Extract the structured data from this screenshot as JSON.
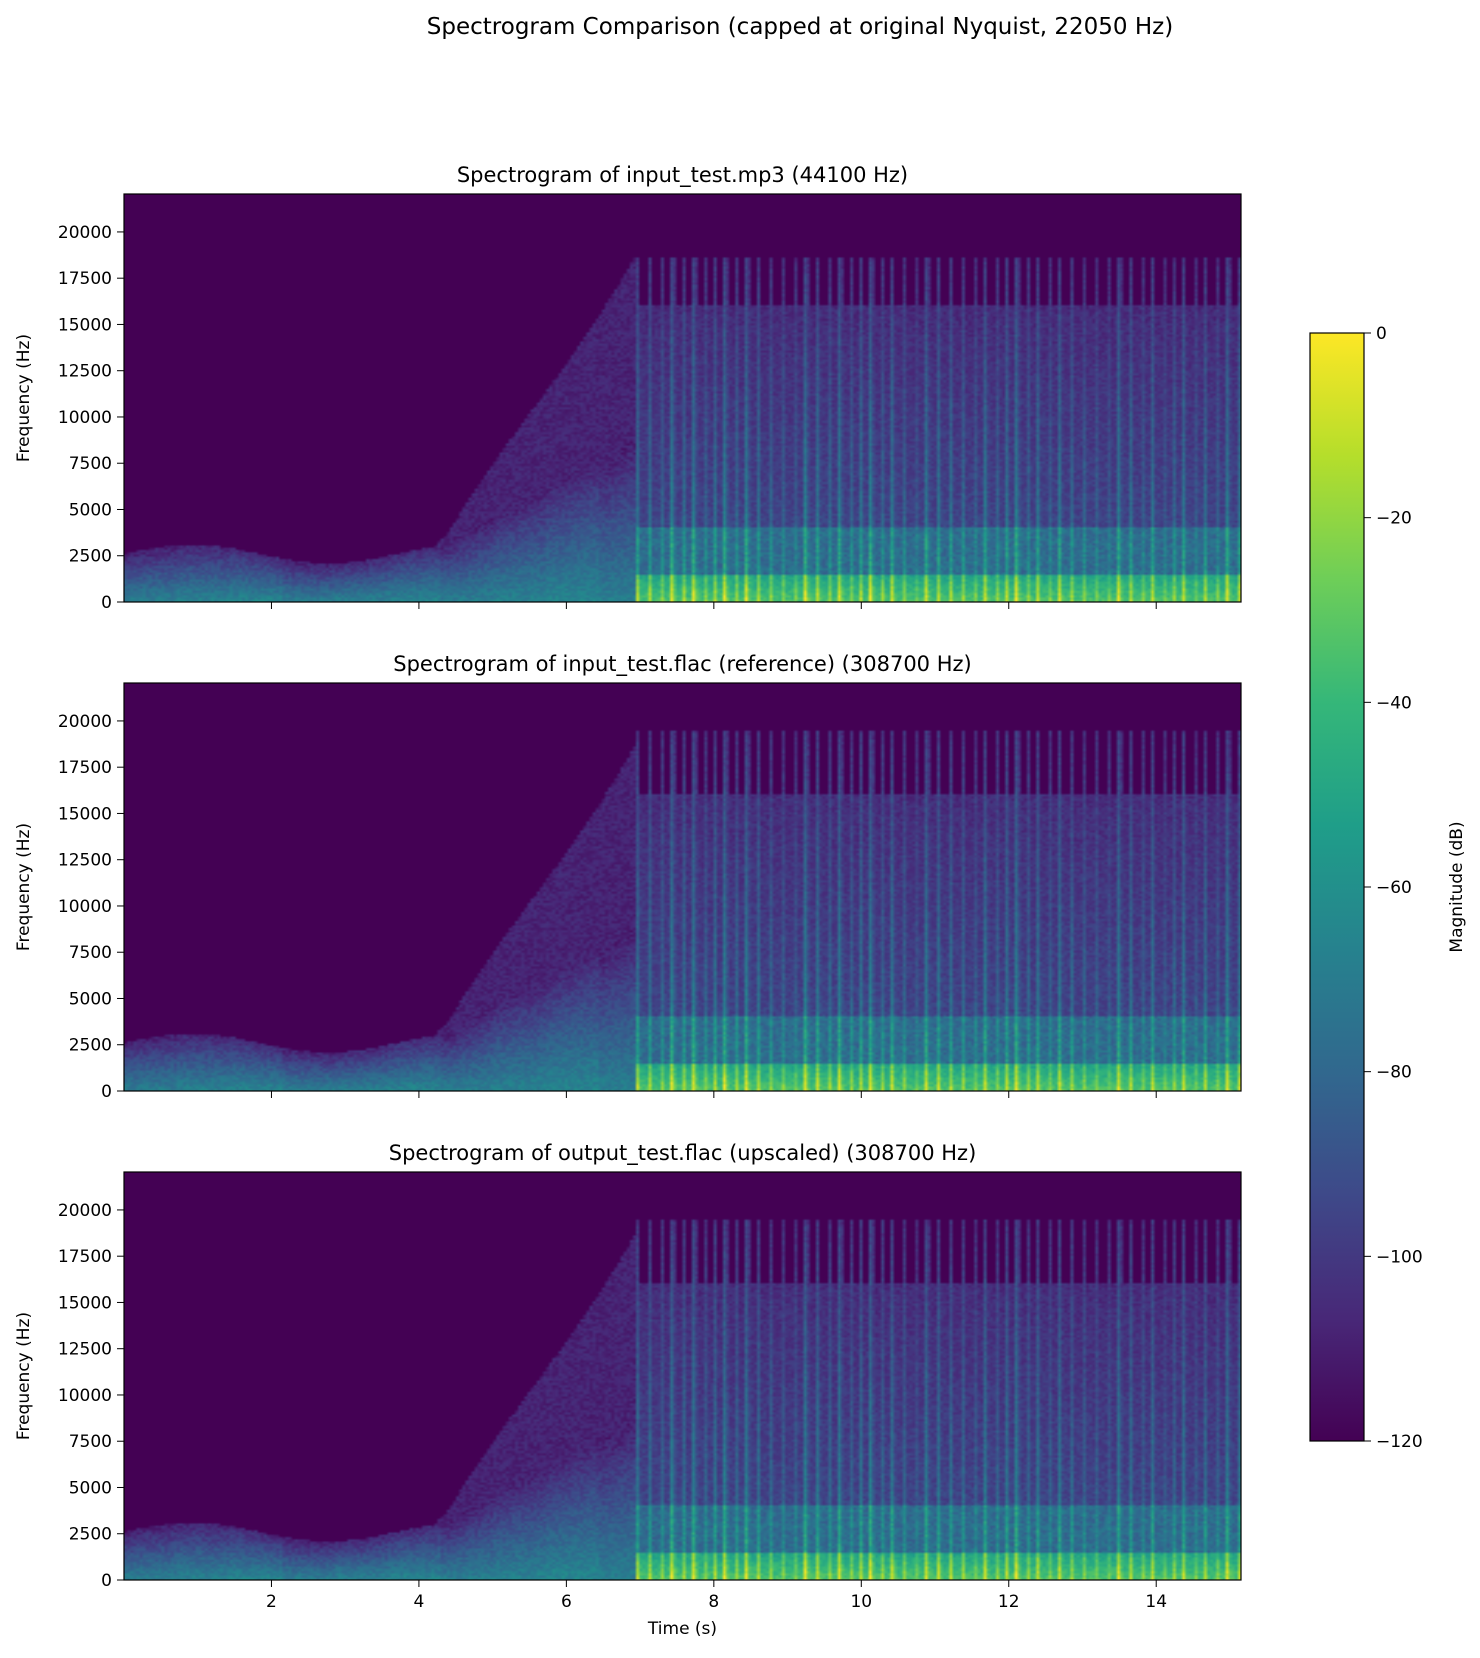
{
  "figure": {
    "suptitle": "Spectrogram Comparison (capped at original Nyquist, 22050 Hz)"
  },
  "colorbar": {
    "label": "Magnitude (dB)",
    "range": [
      -120,
      0
    ],
    "ticks": [
      0,
      -20,
      -40,
      -60,
      -80,
      -100,
      -120
    ],
    "tick_labels": [
      "0",
      "−20",
      "−40",
      "−60",
      "−80",
      "−100",
      "−120"
    ],
    "colormap": "viridis",
    "colormap_stops": [
      "#440154",
      "#482878",
      "#3e4989",
      "#31688e",
      "#26828e",
      "#1f9e89",
      "#35b779",
      "#6ece58",
      "#b5de2b",
      "#fde725"
    ]
  },
  "chart_data": [
    {
      "type": "heatmap",
      "title": "Spectrogram of input_test.mp3 (44100 Hz)",
      "xlabel": "",
      "ylabel": "Frequency (Hz)",
      "xlim": [
        0,
        15.15
      ],
      "ylim": [
        0,
        22050
      ],
      "xticks": [
        2,
        4,
        6,
        8,
        10,
        12,
        14
      ],
      "xtick_labels": [],
      "yticks": [
        0,
        2500,
        5000,
        7500,
        10000,
        12500,
        15000,
        17500,
        20000
      ],
      "ytick_labels": [
        "0",
        "2500",
        "5000",
        "7500",
        "10000",
        "12500",
        "15000",
        "17500",
        "20000"
      ],
      "content_cutoff_hz": 18600,
      "onset_time_s": 6.95
    },
    {
      "type": "heatmap",
      "title": "Spectrogram of input_test.flac (reference) (308700 Hz)",
      "xlabel": "",
      "ylabel": "Frequency (Hz)",
      "xlim": [
        0,
        15.15
      ],
      "ylim": [
        0,
        22050
      ],
      "xticks": [
        2,
        4,
        6,
        8,
        10,
        12,
        14
      ],
      "xtick_labels": [],
      "yticks": [
        0,
        2500,
        5000,
        7500,
        10000,
        12500,
        15000,
        17500,
        20000
      ],
      "ytick_labels": [
        "0",
        "2500",
        "5000",
        "7500",
        "10000",
        "12500",
        "15000",
        "17500",
        "20000"
      ],
      "content_cutoff_hz": 19500,
      "onset_time_s": 6.95
    },
    {
      "type": "heatmap",
      "title": "Spectrogram of output_test.flac (upscaled) (308700 Hz)",
      "xlabel": "Time (s)",
      "ylabel": "Frequency (Hz)",
      "xlim": [
        0,
        15.15
      ],
      "ylim": [
        0,
        22050
      ],
      "xticks": [
        2,
        4,
        6,
        8,
        10,
        12,
        14
      ],
      "xtick_labels": [
        "2",
        "4",
        "6",
        "8",
        "10",
        "12",
        "14"
      ],
      "yticks": [
        0,
        2500,
        5000,
        7500,
        10000,
        12500,
        15000,
        17500,
        20000
      ],
      "ytick_labels": [
        "0",
        "2500",
        "5000",
        "7500",
        "10000",
        "12500",
        "15000",
        "17500",
        "20000"
      ],
      "content_cutoff_hz": 19500,
      "onset_time_s": 6.95
    }
  ]
}
